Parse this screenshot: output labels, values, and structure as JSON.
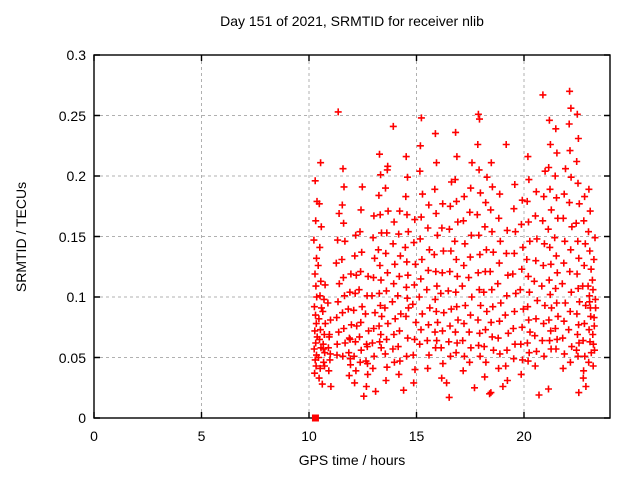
{
  "window": {
    "background": "#ffffff"
  },
  "chart_data": {
    "type": "scatter",
    "title": "Day 151 of 2021, SRMTID for receiver nlib",
    "xlabel": "GPS time / hours",
    "ylabel": "SRMTID / TECUs",
    "xlim": [
      0,
      24
    ],
    "ylim": [
      0,
      0.3
    ],
    "xticks": [
      0,
      5,
      10,
      15,
      20
    ],
    "xtick_labels": [
      "0",
      "5",
      "10",
      "15",
      "20"
    ],
    "yticks": [
      0,
      0.05,
      0.1,
      0.15,
      0.2,
      0.25,
      0.3
    ],
    "ytick_labels": [
      "0",
      "0.05",
      "0.1",
      "0.15",
      "0.2",
      "0.25",
      "0.3"
    ],
    "grid": true,
    "legend": "none",
    "colors": {
      "marker": "#ff0000",
      "grid": "#b0b0b0",
      "border": "#000000",
      "text": "#000000"
    },
    "series": [
      {
        "name": "srmtid",
        "marker": "plus",
        "color": "#ff0000",
        "points_flat": [
          10.26,
          0.037,
          10.33,
          0.043,
          10.29,
          0.048,
          10.35,
          0.052,
          10.24,
          0.057,
          10.31,
          0.062,
          10.38,
          0.067,
          10.27,
          0.072,
          10.34,
          0.078,
          10.3,
          0.085,
          10.25,
          0.092,
          10.36,
          0.1,
          10.32,
          0.109,
          10.28,
          0.119,
          10.35,
          0.132,
          10.23,
          0.147,
          10.31,
          0.163,
          10.37,
          0.179,
          10.29,
          0.196,
          10.47,
          0.033,
          10.52,
          0.041,
          10.44,
          0.05,
          10.56,
          0.058,
          10.49,
          0.065,
          10.53,
          0.073,
          10.46,
          0.082,
          10.58,
          0.091,
          10.51,
          0.101,
          10.55,
          0.113,
          10.43,
          0.126,
          10.5,
          0.141,
          10.57,
          0.158,
          10.48,
          0.177,
          10.54,
          0.211,
          10.68,
          0.046,
          10.73,
          0.054,
          10.66,
          0.061,
          10.71,
          0.069,
          10.76,
          0.078,
          10.64,
          0.088,
          10.7,
          0.098,
          10.75,
          0.11,
          10.67,
          0.057,
          10.72,
          0.043,
          10.92,
          0.039,
          10.97,
          0.048,
          10.9,
          0.058,
          10.95,
          0.069,
          11.0,
          0.081,
          10.88,
          0.095,
          10.94,
          0.067,
          10.99,
          0.053,
          11.36,
          0.253,
          11.31,
          0.061,
          11.38,
          0.071,
          11.29,
          0.083,
          11.35,
          0.096,
          11.41,
          0.111,
          11.27,
          0.128,
          11.33,
          0.147,
          11.4,
          0.169,
          11.3,
          0.052,
          11.58,
          0.206,
          11.63,
          0.191,
          11.55,
          0.176,
          11.61,
          0.161,
          11.67,
          0.146,
          11.53,
          0.131,
          11.6,
          0.116,
          11.65,
          0.101,
          11.56,
          0.087,
          11.62,
          0.074,
          11.68,
          0.062,
          11.57,
          0.051,
          11.87,
          0.035,
          11.93,
          0.044,
          11.85,
          0.054,
          11.91,
          0.065,
          11.97,
          0.077,
          11.83,
          0.09,
          11.9,
          0.104,
          11.95,
          0.119,
          11.88,
          0.066,
          11.92,
          0.049,
          12.12,
          0.029,
          12.18,
          0.039,
          12.1,
          0.051,
          12.16,
          0.063,
          12.22,
          0.076,
          12.08,
          0.089,
          12.15,
          0.103,
          12.2,
          0.118,
          12.13,
          0.134,
          12.17,
          0.151,
          12.38,
          0.046,
          12.43,
          0.056,
          12.35,
          0.067,
          12.41,
          0.079,
          12.47,
          0.092,
          12.33,
          0.106,
          12.4,
          0.121,
          12.45,
          0.137,
          12.37,
          0.154,
          12.42,
          0.172,
          12.48,
          0.191,
          12.67,
          0.026,
          12.73,
          0.036,
          12.65,
          0.047,
          12.71,
          0.059,
          12.77,
          0.072,
          12.63,
          0.086,
          12.7,
          0.101,
          12.75,
          0.117,
          12.68,
          0.061,
          12.72,
          0.045,
          12.97,
          0.041,
          13.03,
          0.051,
          12.95,
          0.062,
          13.01,
          0.074,
          13.07,
          0.087,
          12.93,
          0.101,
          13.0,
          0.116,
          13.05,
          0.132,
          12.98,
          0.149,
          13.02,
          0.167,
          13.28,
          0.218,
          13.33,
          0.201,
          13.25,
          0.184,
          13.31,
          0.168,
          13.37,
          0.153,
          13.23,
          0.139,
          13.3,
          0.126,
          13.35,
          0.114,
          13.27,
          0.103,
          13.32,
          0.093,
          13.38,
          0.084,
          13.26,
          0.076,
          13.34,
          0.069,
          13.29,
          0.063,
          13.36,
          0.058,
          13.58,
          0.031,
          13.63,
          0.042,
          13.55,
          0.053,
          13.61,
          0.065,
          13.67,
          0.078,
          13.53,
          0.091,
          13.6,
          0.105,
          13.65,
          0.12,
          13.57,
          0.136,
          13.62,
          0.153,
          13.68,
          0.171,
          13.56,
          0.19,
          13.64,
          0.205,
          13.66,
          0.208,
          13.92,
          0.241,
          13.97,
          0.046,
          13.9,
          0.057,
          13.95,
          0.069,
          14.01,
          0.082,
          13.88,
          0.096,
          13.94,
          0.111,
          13.99,
          0.127,
          13.91,
          0.144,
          13.96,
          0.162,
          14.18,
          0.036,
          14.23,
          0.047,
          14.15,
          0.059,
          14.21,
          0.072,
          14.27,
          0.086,
          14.13,
          0.101,
          14.2,
          0.117,
          14.25,
          0.134,
          14.17,
          0.152,
          14.22,
          0.171,
          14.52,
          0.216,
          14.58,
          0.199,
          14.5,
          0.183,
          14.56,
          0.168,
          14.62,
          0.154,
          14.48,
          0.141,
          14.55,
          0.129,
          14.6,
          0.118,
          14.53,
          0.108,
          14.57,
          0.099,
          14.63,
          0.091,
          14.51,
          0.084,
          14.59,
          0.066,
          14.54,
          0.051,
          14.87,
          0.029,
          14.93,
          0.04,
          14.85,
          0.052,
          14.91,
          0.065,
          14.97,
          0.079,
          14.83,
          0.094,
          14.9,
          0.11,
          14.95,
          0.127,
          14.88,
          0.145,
          14.92,
          0.164,
          15.18,
          0.225,
          15.23,
          0.248,
          15.15,
          0.061,
          15.21,
          0.073,
          15.27,
          0.086,
          15.13,
          0.1,
          15.2,
          0.115,
          15.25,
          0.131,
          15.17,
          0.148,
          15.22,
          0.166,
          15.28,
          0.185,
          15.16,
          0.204,
          15.52,
          0.041,
          15.58,
          0.052,
          15.5,
          0.064,
          15.56,
          0.077,
          15.62,
          0.091,
          15.48,
          0.106,
          15.55,
          0.122,
          15.6,
          0.139,
          15.53,
          0.157,
          15.57,
          0.176,
          15.88,
          0.235,
          15.93,
          0.211,
          15.85,
          0.189,
          15.91,
          0.169,
          15.97,
          0.151,
          15.83,
          0.135,
          15.9,
          0.121,
          15.95,
          0.109,
          15.87,
          0.098,
          15.92,
          0.088,
          15.98,
          0.079,
          15.86,
          0.071,
          15.94,
          0.064,
          15.89,
          0.058,
          16.17,
          0.033,
          16.23,
          0.045,
          16.15,
          0.058,
          16.21,
          0.072,
          16.27,
          0.087,
          16.13,
          0.103,
          16.2,
          0.12,
          16.25,
          0.138,
          16.18,
          0.157,
          16.22,
          0.177,
          16.52,
          0.017,
          16.58,
          0.051,
          16.5,
          0.063,
          16.56,
          0.076,
          16.62,
          0.09,
          16.48,
          0.105,
          16.55,
          0.121,
          16.6,
          0.138,
          16.53,
          0.156,
          16.57,
          0.175,
          16.63,
          0.195,
          16.82,
          0.236,
          16.88,
          0.216,
          16.8,
          0.197,
          16.86,
          0.179,
          16.92,
          0.162,
          16.78,
          0.146,
          16.85,
          0.131,
          16.9,
          0.117,
          16.83,
          0.104,
          16.87,
          0.092,
          16.93,
          0.081,
          16.81,
          0.071,
          16.89,
          0.062,
          16.84,
          0.054,
          17.17,
          0.039,
          17.23,
          0.051,
          17.15,
          0.064,
          17.21,
          0.078,
          17.27,
          0.093,
          17.13,
          0.109,
          17.2,
          0.126,
          17.25,
          0.144,
          17.18,
          0.163,
          17.22,
          0.183,
          17.47,
          0.046,
          17.53,
          0.058,
          17.45,
          0.071,
          17.51,
          0.085,
          17.57,
          0.1,
          17.43,
          0.116,
          17.5,
          0.133,
          17.55,
          0.151,
          17.48,
          0.17,
          17.52,
          0.19,
          17.58,
          0.211,
          17.88,
          0.251,
          17.93,
          0.247,
          17.85,
          0.226,
          17.91,
          0.205,
          17.97,
          0.186,
          17.83,
          0.168,
          17.9,
          0.151,
          17.95,
          0.135,
          17.87,
          0.12,
          17.92,
          0.106,
          17.98,
          0.093,
          17.86,
          0.081,
          17.94,
          0.07,
          17.89,
          0.06,
          17.96,
          0.051,
          18.17,
          0.034,
          18.23,
          0.046,
          18.15,
          0.059,
          18.21,
          0.073,
          18.27,
          0.088,
          18.13,
          0.104,
          18.2,
          0.121,
          18.25,
          0.139,
          18.18,
          0.158,
          18.22,
          0.178,
          18.28,
          0.199,
          18.48,
          0.211,
          18.53,
          0.191,
          18.45,
          0.172,
          18.51,
          0.154,
          18.57,
          0.137,
          18.43,
          0.121,
          18.5,
          0.106,
          18.55,
          0.092,
          18.47,
          0.079,
          18.52,
          0.067,
          18.58,
          0.056,
          18.46,
          0.021,
          18.82,
          0.041,
          18.88,
          0.053,
          18.8,
          0.066,
          18.86,
          0.08,
          18.92,
          0.095,
          18.78,
          0.111,
          18.85,
          0.128,
          18.9,
          0.146,
          18.83,
          0.165,
          18.87,
          0.185,
          19.17,
          0.226,
          19.23,
          0.031,
          19.15,
          0.043,
          19.21,
          0.056,
          19.27,
          0.07,
          19.13,
          0.085,
          19.2,
          0.101,
          19.25,
          0.118,
          19.18,
          0.136,
          19.22,
          0.155,
          19.52,
          0.049,
          19.58,
          0.061,
          19.5,
          0.074,
          19.56,
          0.088,
          19.62,
          0.103,
          19.48,
          0.119,
          19.55,
          0.136,
          19.6,
          0.154,
          19.53,
          0.173,
          19.57,
          0.193,
          19.87,
          0.036,
          19.93,
          0.048,
          19.85,
          0.061,
          19.91,
          0.075,
          19.97,
          0.09,
          19.83,
          0.106,
          19.9,
          0.123,
          19.95,
          0.141,
          19.88,
          0.16,
          19.92,
          0.18,
          20.18,
          0.216,
          20.23,
          0.197,
          20.15,
          0.179,
          20.21,
          0.162,
          20.27,
          0.146,
          20.13,
          0.131,
          20.2,
          0.117,
          20.25,
          0.104,
          20.17,
          0.092,
          20.22,
          0.081,
          20.28,
          0.071,
          20.16,
          0.062,
          20.24,
          0.054,
          20.19,
          0.047,
          20.52,
          0.043,
          20.58,
          0.055,
          20.5,
          0.068,
          20.56,
          0.082,
          20.62,
          0.097,
          20.48,
          0.113,
          20.55,
          0.13,
          20.6,
          0.148,
          20.53,
          0.167,
          20.57,
          0.187,
          20.88,
          0.267,
          20.93,
          0.051,
          20.85,
          0.064,
          20.91,
          0.078,
          20.97,
          0.093,
          20.83,
          0.109,
          20.9,
          0.126,
          20.95,
          0.144,
          20.87,
          0.163,
          20.92,
          0.183,
          20.98,
          0.204,
          21.18,
          0.246,
          21.23,
          0.226,
          21.15,
          0.207,
          21.21,
          0.189,
          21.27,
          0.172,
          21.13,
          0.156,
          21.2,
          0.141,
          21.25,
          0.127,
          21.17,
          0.114,
          21.22,
          0.102,
          21.28,
          0.091,
          21.16,
          0.081,
          21.24,
          0.072,
          21.19,
          0.064,
          21.26,
          0.057,
          21.14,
          0.024,
          21.48,
          0.239,
          21.53,
          0.219,
          21.45,
          0.2,
          21.51,
          0.182,
          21.57,
          0.165,
          21.43,
          0.149,
          21.5,
          0.134,
          21.55,
          0.12,
          21.47,
          0.107,
          21.52,
          0.095,
          21.58,
          0.084,
          21.46,
          0.074,
          21.54,
          0.065,
          21.49,
          0.057,
          21.82,
          0.041,
          21.88,
          0.053,
          21.8,
          0.066,
          21.86,
          0.08,
          21.92,
          0.095,
          21.78,
          0.111,
          21.85,
          0.128,
          21.9,
          0.146,
          21.83,
          0.165,
          21.87,
          0.185,
          21.93,
          0.206,
          22.12,
          0.27,
          22.18,
          0.256,
          22.1,
          0.243,
          22.16,
          0.046,
          22.22,
          0.059,
          22.08,
          0.073,
          22.15,
          0.088,
          22.2,
          0.104,
          22.13,
          0.121,
          22.17,
          0.139,
          22.23,
          0.158,
          22.11,
          0.178,
          22.19,
          0.199,
          22.14,
          0.221,
          22.48,
          0.251,
          22.53,
          0.231,
          22.45,
          0.212,
          22.51,
          0.194,
          22.57,
          0.177,
          22.43,
          0.161,
          22.5,
          0.146,
          22.55,
          0.132,
          22.47,
          0.119,
          22.52,
          0.107,
          22.58,
          0.096,
          22.46,
          0.086,
          22.54,
          0.077,
          22.49,
          0.069,
          22.56,
          0.062,
          22.44,
          0.056,
          22.51,
          0.051,
          22.55,
          0.021,
          22.77,
          0.039,
          22.83,
          0.051,
          22.75,
          0.064,
          22.81,
          0.078,
          22.87,
          0.093,
          22.73,
          0.109,
          22.8,
          0.126,
          22.85,
          0.144,
          22.78,
          0.163,
          22.82,
          0.183,
          22.88,
          0.026,
          22.76,
          0.033,
          23.02,
          0.189,
          23.08,
          0.171,
          23.0,
          0.154,
          23.06,
          0.138,
          23.12,
          0.123,
          22.98,
          0.109,
          23.05,
          0.096,
          23.1,
          0.084,
          23.03,
          0.073,
          23.07,
          0.063,
          23.13,
          0.054,
          23.01,
          0.046,
          23.09,
          0.091,
          23.04,
          0.101,
          23.22,
          0.043,
          23.28,
          0.056,
          23.2,
          0.069,
          23.26,
          0.083,
          23.32,
          0.098,
          23.18,
          0.114,
          23.25,
          0.131,
          23.3,
          0.149,
          23.23,
          0.061,
          23.27,
          0.076,
          23.33,
          0.091,
          23.21,
          0.106,
          12.55,
          0.018,
          13.1,
          0.022,
          14.4,
          0.023,
          16.4,
          0.029,
          18.4,
          0.02,
          19.02,
          0.026,
          11.02,
          0.026,
          10.62,
          0.028,
          17.7,
          0.025,
          20.7,
          0.019
        ]
      },
      {
        "name": "zero-marker",
        "marker": "filled-square",
        "color": "#ff0000",
        "points_flat": [
          10.3,
          0.0
        ]
      }
    ]
  }
}
